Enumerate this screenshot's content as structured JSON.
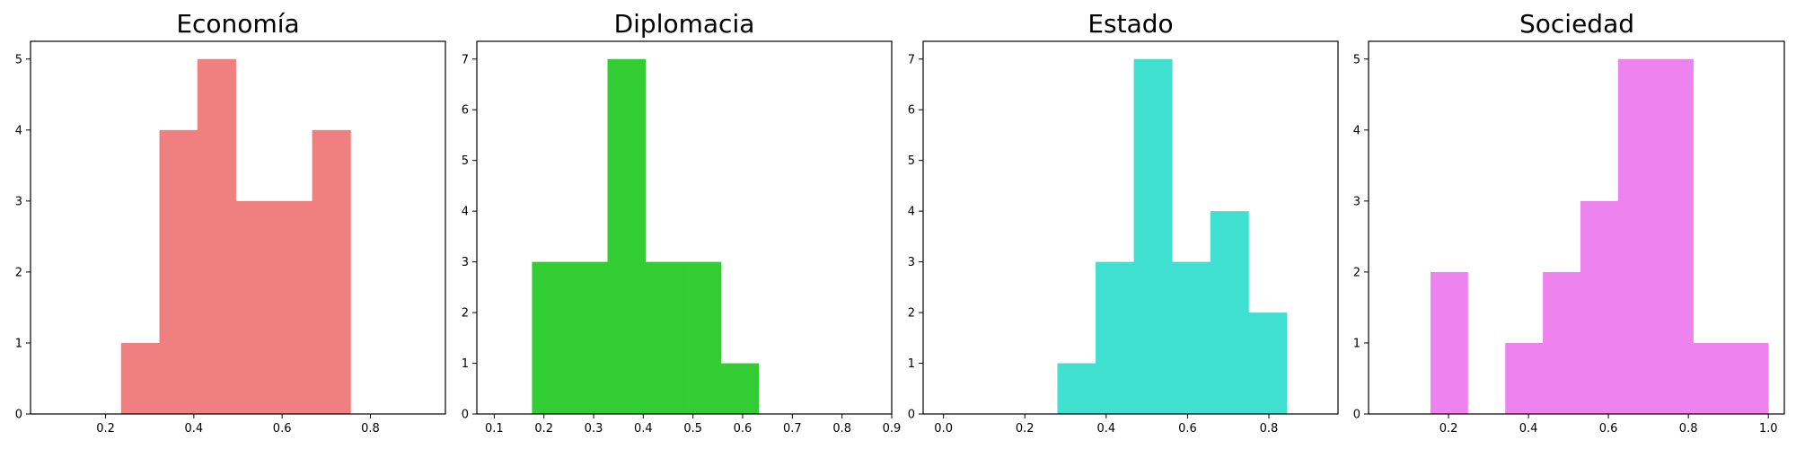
{
  "chart_data": [
    {
      "type": "bar",
      "title": "Economía",
      "xlim": [
        0.03,
        0.97
      ],
      "ylim": [
        0,
        5.25
      ],
      "xticks": [
        0.2,
        0.4,
        0.6,
        0.8
      ],
      "yticks": [
        0,
        1,
        2,
        3,
        4,
        5
      ],
      "color": "#f08080",
      "bins": [
        {
          "x0": 0.235,
          "x1": 0.322,
          "count": 1
        },
        {
          "x0": 0.322,
          "x1": 0.408,
          "count": 4
        },
        {
          "x0": 0.408,
          "x1": 0.495,
          "count": 5
        },
        {
          "x0": 0.495,
          "x1": 0.582,
          "count": 3
        },
        {
          "x0": 0.582,
          "x1": 0.668,
          "count": 3
        },
        {
          "x0": 0.668,
          "x1": 0.755,
          "count": 4
        }
      ]
    },
    {
      "type": "bar",
      "title": "Diplomacia",
      "xlim": [
        0.065,
        0.9
      ],
      "ylim": [
        0,
        7.35
      ],
      "xticks": [
        0.1,
        0.2,
        0.3,
        0.4,
        0.5,
        0.6,
        0.7,
        0.8,
        0.9
      ],
      "yticks": [
        0,
        1,
        2,
        3,
        4,
        5,
        6,
        7
      ],
      "color": "#32cd32",
      "bins": [
        {
          "x0": 0.176,
          "x1": 0.252,
          "count": 3
        },
        {
          "x0": 0.252,
          "x1": 0.328,
          "count": 3
        },
        {
          "x0": 0.328,
          "x1": 0.404,
          "count": 7
        },
        {
          "x0": 0.404,
          "x1": 0.48,
          "count": 3
        },
        {
          "x0": 0.48,
          "x1": 0.556,
          "count": 3
        },
        {
          "x0": 0.556,
          "x1": 0.632,
          "count": 1
        }
      ]
    },
    {
      "type": "bar",
      "title": "Estado",
      "xlim": [
        -0.05,
        0.97
      ],
      "ylim": [
        0,
        7.35
      ],
      "xticks": [
        0.0,
        0.2,
        0.4,
        0.6,
        0.8
      ],
      "yticks": [
        0,
        1,
        2,
        3,
        4,
        5,
        6,
        7
      ],
      "color": "#40e0d0",
      "bins": [
        {
          "x0": 0.28,
          "x1": 0.374,
          "count": 1
        },
        {
          "x0": 0.374,
          "x1": 0.468,
          "count": 3
        },
        {
          "x0": 0.468,
          "x1": 0.562,
          "count": 7
        },
        {
          "x0": 0.562,
          "x1": 0.656,
          "count": 3
        },
        {
          "x0": 0.656,
          "x1": 0.75,
          "count": 4
        },
        {
          "x0": 0.75,
          "x1": 0.844,
          "count": 2
        }
      ]
    },
    {
      "type": "bar",
      "title": "Sociedad",
      "xlim": [
        0.0,
        1.04
      ],
      "ylim": [
        0,
        5.25
      ],
      "xticks": [
        0.2,
        0.4,
        0.6,
        0.8,
        1.0
      ],
      "yticks": [
        0,
        1,
        2,
        3,
        4,
        5
      ],
      "color": "#ee82ee",
      "bins": [
        {
          "x0": 0.155,
          "x1": 0.248,
          "count": 2
        },
        {
          "x0": 0.248,
          "x1": 0.342,
          "count": 0
        },
        {
          "x0": 0.342,
          "x1": 0.436,
          "count": 1
        },
        {
          "x0": 0.436,
          "x1": 0.53,
          "count": 2
        },
        {
          "x0": 0.53,
          "x1": 0.624,
          "count": 3
        },
        {
          "x0": 0.624,
          "x1": 0.718,
          "count": 5
        },
        {
          "x0": 0.718,
          "x1": 0.812,
          "count": 5
        },
        {
          "x0": 0.812,
          "x1": 0.906,
          "count": 1
        },
        {
          "x0": 0.906,
          "x1": 1.0,
          "count": 1
        }
      ]
    }
  ]
}
